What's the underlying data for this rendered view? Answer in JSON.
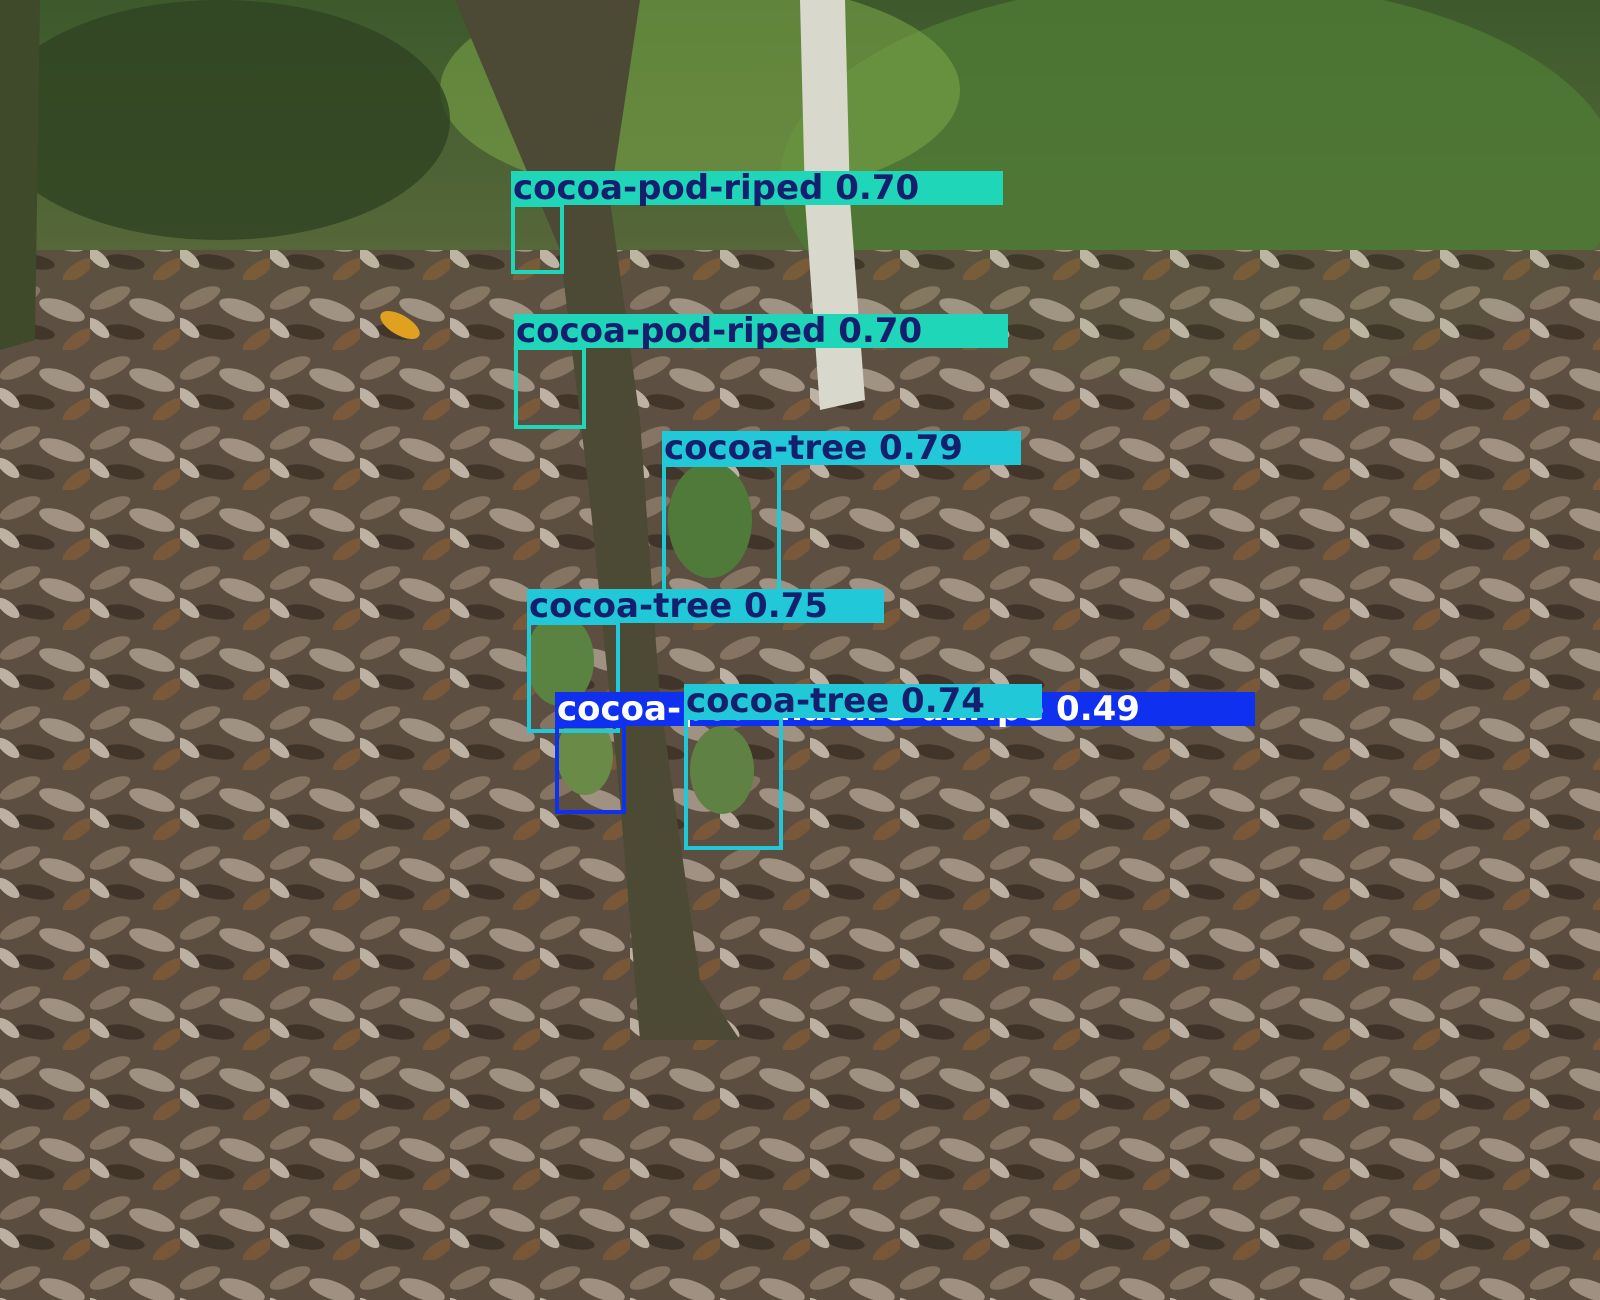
{
  "scene": {
    "description_colors": {
      "leaf_litter": "#6e5d4c",
      "foliage": "#3f5a2a",
      "trunk": "#4d4a35"
    }
  },
  "detections": [
    {
      "label": "cocoa-pod-riped 0.70",
      "class": "cocoa-pod-riped",
      "score": 0.7,
      "color": "#1fd6b8",
      "text_color": "#14206e"
    },
    {
      "label": "cocoa-pod-riped 0.70",
      "class": "cocoa-pod-riped",
      "score": 0.7,
      "color": "#1fd6b8",
      "text_color": "#14206e"
    },
    {
      "label": "cocoa-tree 0.79",
      "class": "cocoa-tree",
      "score": 0.79,
      "color": "#20c8d8",
      "text_color": "#14206e"
    },
    {
      "label": "cocoa-tree 0.75",
      "class": "cocoa-tree",
      "score": 0.75,
      "color": "#20c8d8",
      "text_color": "#14206e"
    },
    {
      "label": "cocoa-pod-mature-unripe 0.49",
      "class": "cocoa-pod-mature-unripe",
      "score": 0.49,
      "color": "#1030f0",
      "text_color": "#ffffff"
    },
    {
      "label": "cocoa-tree 0.74",
      "class": "cocoa-tree",
      "score": 0.74,
      "color": "#20c8d8",
      "text_color": "#14206e"
    }
  ]
}
